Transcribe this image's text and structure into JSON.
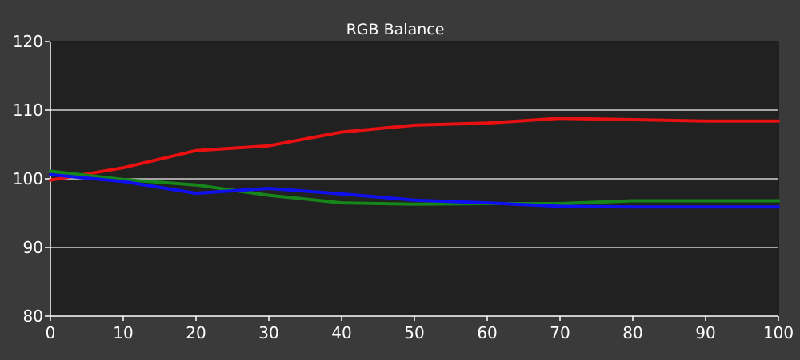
{
  "chart_data": {
    "type": "line",
    "title": "RGB Balance",
    "xlabel": "",
    "ylabel": "",
    "xlim": [
      0,
      100
    ],
    "ylim": [
      80,
      120
    ],
    "x_ticks": [
      0,
      10,
      20,
      30,
      40,
      50,
      60,
      70,
      80,
      90,
      100
    ],
    "y_ticks": [
      80,
      90,
      100,
      110,
      120
    ],
    "grid": "horizontal",
    "x": [
      0,
      10,
      20,
      30,
      40,
      50,
      60,
      70,
      80,
      90,
      100
    ],
    "series": [
      {
        "color": "#e81010",
        "values": [
          99.8,
          101.6,
          104.1,
          104.8,
          106.8,
          107.8,
          108.1,
          108.8,
          108.6,
          108.4,
          108.4
        ]
      },
      {
        "color": "#16861a",
        "values": [
          101.1,
          99.9,
          99.1,
          97.6,
          96.5,
          96.3,
          96.4,
          96.4,
          96.8,
          96.8,
          96.8
        ]
      },
      {
        "color": "#1010ee",
        "values": [
          100.6,
          99.6,
          97.9,
          98.6,
          97.8,
          96.9,
          96.5,
          96.0,
          95.9,
          95.9,
          95.9
        ]
      }
    ]
  }
}
